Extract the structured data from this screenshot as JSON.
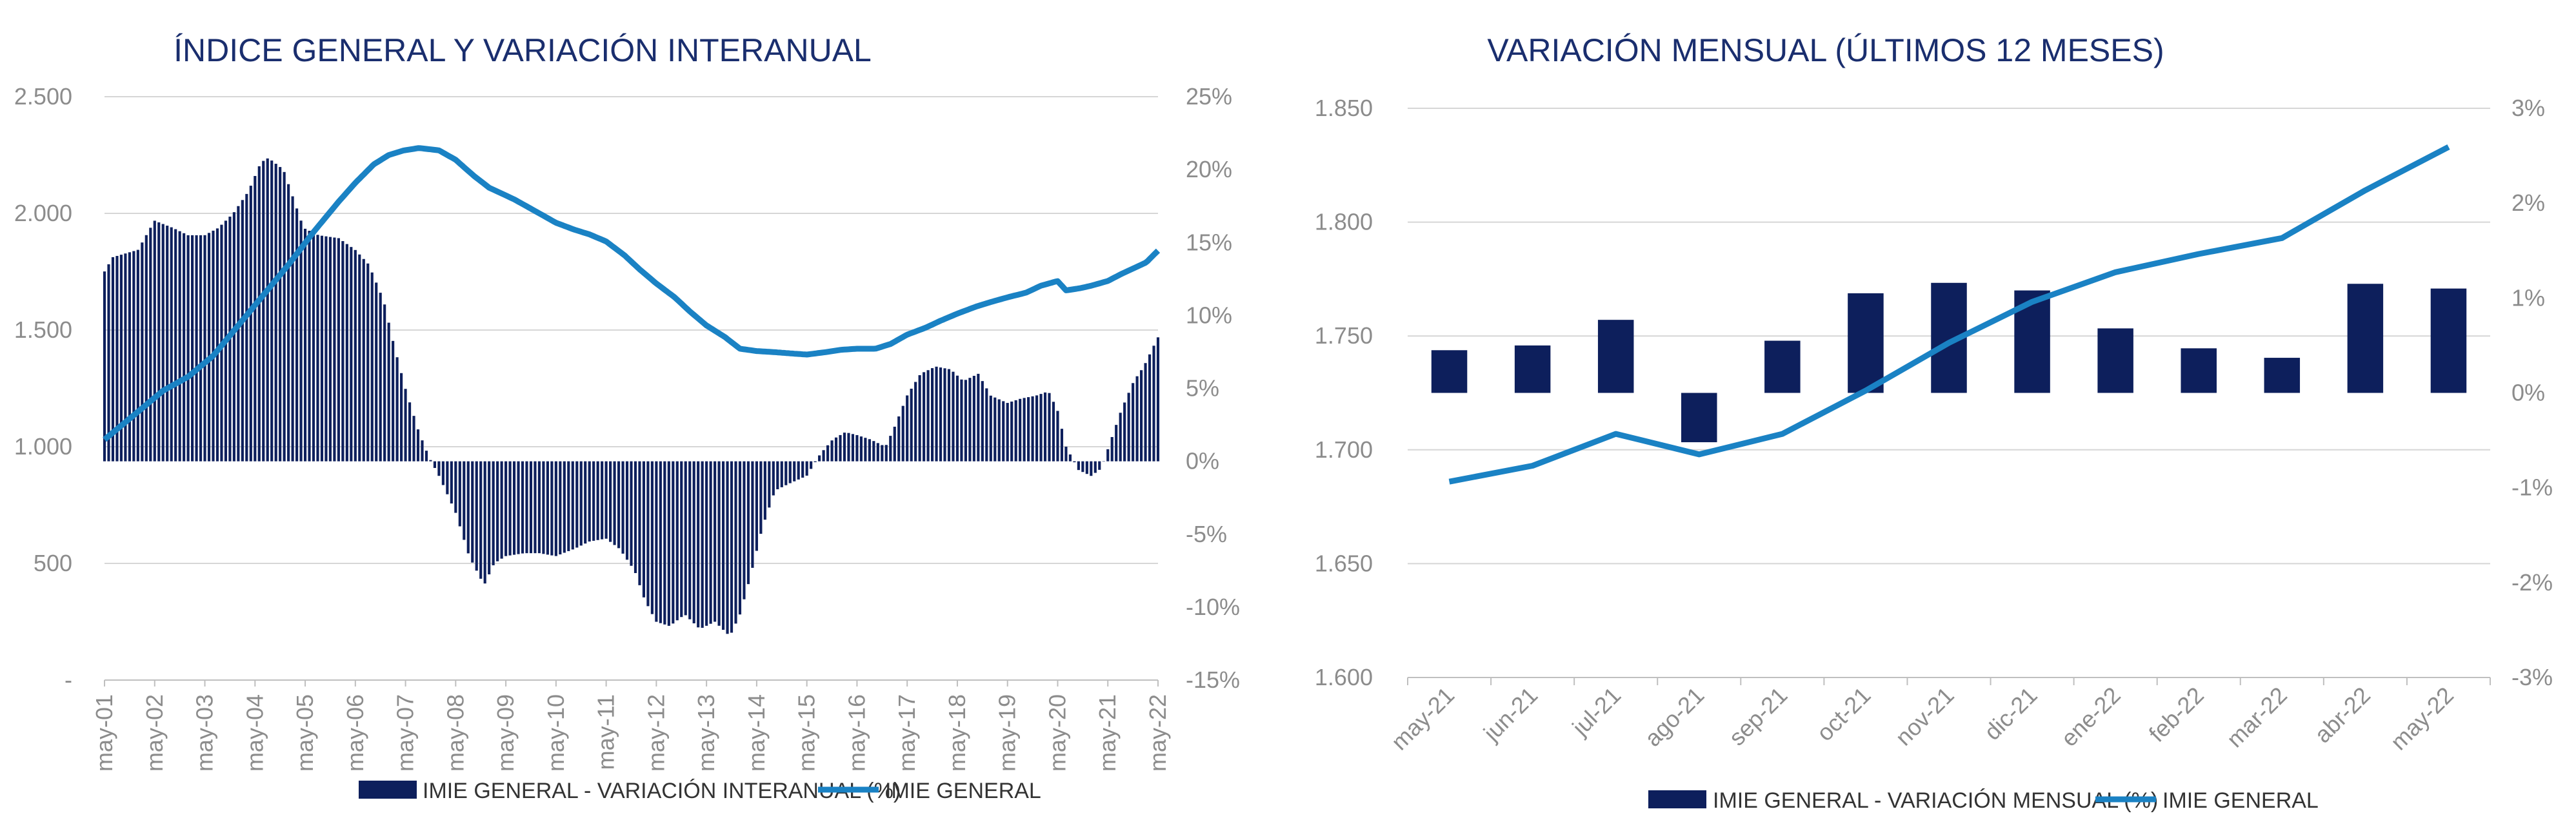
{
  "colors": {
    "bar": "#0d1f5c",
    "line": "#1a82c4",
    "grid": "#d6d6d6",
    "axis": "#bfbfbf",
    "title": "#1a2e6e",
    "tick": "#8c8c8c"
  },
  "chart_data": [
    {
      "type": "bar+line",
      "title": "ÍNDICE GENERAL Y VARIACIÓN INTERANUAL",
      "xlabel": "",
      "ylabel": "",
      "left_axis": {
        "ticks": [
          "-",
          "500",
          "1.000",
          "1.500",
          "2.000",
          "2.500"
        ],
        "range": [
          0,
          2500
        ]
      },
      "right_axis": {
        "ticks": [
          "-15%",
          "-10%",
          "-5%",
          "0%",
          "5%",
          "10%",
          "15%",
          "20%",
          "25%"
        ],
        "range": [
          -15,
          25
        ]
      },
      "x_tick_labels": [
        "may-01",
        "may-02",
        "may-03",
        "may-04",
        "may-05",
        "may-06",
        "may-07",
        "may-08",
        "may-09",
        "may-10",
        "may-11",
        "may-12",
        "may-13",
        "may-14",
        "may-15",
        "may-16",
        "may-17",
        "may-18",
        "may-19",
        "may-20",
        "may-21",
        "may-22"
      ],
      "x_start": 2001.333,
      "x_end": 2022.333,
      "legend": [
        "IMIE GENERAL - VARIACIÓN INTERANUAL (%)",
        "IMIE GENERAL"
      ],
      "legend_position": "bottom",
      "grid": true,
      "bar_keypoints": [
        {
          "t": 2001.33,
          "v": 13.0
        },
        {
          "t": 2001.5,
          "v": 14.0
        },
        {
          "t": 2002.0,
          "v": 14.5
        },
        {
          "t": 2002.33,
          "v": 16.5
        },
        {
          "t": 2002.7,
          "v": 16.0
        },
        {
          "t": 2003.0,
          "v": 15.5
        },
        {
          "t": 2003.33,
          "v": 15.5
        },
        {
          "t": 2003.6,
          "v": 16.0
        },
        {
          "t": 2003.9,
          "v": 17.0
        },
        {
          "t": 2004.2,
          "v": 18.5
        },
        {
          "t": 2004.45,
          "v": 20.5
        },
        {
          "t": 2004.6,
          "v": 20.8
        },
        {
          "t": 2004.9,
          "v": 20.0
        },
        {
          "t": 2005.1,
          "v": 18.0
        },
        {
          "t": 2005.3,
          "v": 16.0
        },
        {
          "t": 2005.6,
          "v": 15.5
        },
        {
          "t": 2006.0,
          "v": 15.3
        },
        {
          "t": 2006.33,
          "v": 14.5
        },
        {
          "t": 2006.6,
          "v": 13.5
        },
        {
          "t": 2006.9,
          "v": 11.0
        },
        {
          "t": 2007.1,
          "v": 8.0
        },
        {
          "t": 2007.33,
          "v": 5.0
        },
        {
          "t": 2007.6,
          "v": 2.0
        },
        {
          "t": 2007.8,
          "v": 0.3
        },
        {
          "t": 2008.0,
          "v": -1.0
        },
        {
          "t": 2008.33,
          "v": -3.5
        },
        {
          "t": 2008.6,
          "v": -6.5
        },
        {
          "t": 2008.9,
          "v": -8.5
        },
        {
          "t": 2009.1,
          "v": -7.0
        },
        {
          "t": 2009.33,
          "v": -6.5
        },
        {
          "t": 2009.7,
          "v": -6.3
        },
        {
          "t": 2010.0,
          "v": -6.3
        },
        {
          "t": 2010.33,
          "v": -6.5
        },
        {
          "t": 2010.7,
          "v": -6.0
        },
        {
          "t": 2011.0,
          "v": -5.5
        },
        {
          "t": 2011.33,
          "v": -5.3
        },
        {
          "t": 2011.6,
          "v": -6.0
        },
        {
          "t": 2011.9,
          "v": -7.5
        },
        {
          "t": 2012.1,
          "v": -9.5
        },
        {
          "t": 2012.33,
          "v": -11.0
        },
        {
          "t": 2012.6,
          "v": -11.3
        },
        {
          "t": 2012.9,
          "v": -10.5
        },
        {
          "t": 2013.2,
          "v": -11.5
        },
        {
          "t": 2013.5,
          "v": -11.0
        },
        {
          "t": 2013.8,
          "v": -12.0
        },
        {
          "t": 2014.0,
          "v": -10.5
        },
        {
          "t": 2014.2,
          "v": -8.0
        },
        {
          "t": 2014.45,
          "v": -4.5
        },
        {
          "t": 2014.7,
          "v": -2.0
        },
        {
          "t": 2015.0,
          "v": -1.5
        },
        {
          "t": 2015.33,
          "v": -1.0
        },
        {
          "t": 2015.6,
          "v": 0.5
        },
        {
          "t": 2015.85,
          "v": 1.5
        },
        {
          "t": 2016.1,
          "v": 2.0
        },
        {
          "t": 2016.33,
          "v": 1.8
        },
        {
          "t": 2016.6,
          "v": 1.5
        },
        {
          "t": 2016.9,
          "v": 1.0
        },
        {
          "t": 2017.1,
          "v": 2.5
        },
        {
          "t": 2017.33,
          "v": 4.5
        },
        {
          "t": 2017.6,
          "v": 6.0
        },
        {
          "t": 2017.9,
          "v": 6.5
        },
        {
          "t": 2018.2,
          "v": 6.3
        },
        {
          "t": 2018.45,
          "v": 5.5
        },
        {
          "t": 2018.75,
          "v": 6.0
        },
        {
          "t": 2019.0,
          "v": 4.5
        },
        {
          "t": 2019.33,
          "v": 4.0
        },
        {
          "t": 2019.6,
          "v": 4.3
        },
        {
          "t": 2019.9,
          "v": 4.5
        },
        {
          "t": 2020.15,
          "v": 4.8
        },
        {
          "t": 2020.33,
          "v": 3.5
        },
        {
          "t": 2020.5,
          "v": 1.0
        },
        {
          "t": 2020.75,
          "v": -0.6
        },
        {
          "t": 2021.0,
          "v": -1.0
        },
        {
          "t": 2021.2,
          "v": -0.5
        },
        {
          "t": 2021.4,
          "v": 1.5
        },
        {
          "t": 2021.6,
          "v": 3.5
        },
        {
          "t": 2021.85,
          "v": 5.5
        },
        {
          "t": 2022.05,
          "v": 6.5
        },
        {
          "t": 2022.33,
          "v": 8.5
        }
      ],
      "line_keypoints": [
        {
          "t": 2001.33,
          "v": 1030
        },
        {
          "t": 2002.0,
          "v": 1150
        },
        {
          "t": 2002.5,
          "v": 1240
        },
        {
          "t": 2003.0,
          "v": 1300
        },
        {
          "t": 2003.5,
          "v": 1390
        },
        {
          "t": 2004.0,
          "v": 1520
        },
        {
          "t": 2004.5,
          "v": 1650
        },
        {
          "t": 2005.0,
          "v": 1780
        },
        {
          "t": 2005.5,
          "v": 1920
        },
        {
          "t": 2006.0,
          "v": 2050
        },
        {
          "t": 2006.33,
          "v": 2130
        },
        {
          "t": 2006.7,
          "v": 2210
        },
        {
          "t": 2007.0,
          "v": 2250
        },
        {
          "t": 2007.3,
          "v": 2270
        },
        {
          "t": 2007.6,
          "v": 2280
        },
        {
          "t": 2008.0,
          "v": 2270
        },
        {
          "t": 2008.33,
          "v": 2230
        },
        {
          "t": 2008.7,
          "v": 2160
        },
        {
          "t": 2009.0,
          "v": 2110
        },
        {
          "t": 2009.5,
          "v": 2060
        },
        {
          "t": 2010.0,
          "v": 2000
        },
        {
          "t": 2010.33,
          "v": 1960
        },
        {
          "t": 2010.7,
          "v": 1930
        },
        {
          "t": 2011.0,
          "v": 1910
        },
        {
          "t": 2011.33,
          "v": 1880
        },
        {
          "t": 2011.7,
          "v": 1820
        },
        {
          "t": 2012.0,
          "v": 1760
        },
        {
          "t": 2012.33,
          "v": 1700
        },
        {
          "t": 2012.7,
          "v": 1640
        },
        {
          "t": 2013.0,
          "v": 1580
        },
        {
          "t": 2013.33,
          "v": 1520
        },
        {
          "t": 2013.7,
          "v": 1470
        },
        {
          "t": 2014.0,
          "v": 1420
        },
        {
          "t": 2014.33,
          "v": 1410
        },
        {
          "t": 2014.7,
          "v": 1405
        },
        {
          "t": 2015.0,
          "v": 1400
        },
        {
          "t": 2015.33,
          "v": 1395
        },
        {
          "t": 2015.7,
          "v": 1405
        },
        {
          "t": 2016.0,
          "v": 1415
        },
        {
          "t": 2016.33,
          "v": 1420
        },
        {
          "t": 2016.7,
          "v": 1420
        },
        {
          "t": 2017.0,
          "v": 1440
        },
        {
          "t": 2017.33,
          "v": 1480
        },
        {
          "t": 2017.7,
          "v": 1510
        },
        {
          "t": 2018.0,
          "v": 1540
        },
        {
          "t": 2018.33,
          "v": 1570
        },
        {
          "t": 2018.7,
          "v": 1600
        },
        {
          "t": 2019.0,
          "v": 1620
        },
        {
          "t": 2019.33,
          "v": 1640
        },
        {
          "t": 2019.7,
          "v": 1660
        },
        {
          "t": 2020.0,
          "v": 1690
        },
        {
          "t": 2020.33,
          "v": 1710
        },
        {
          "t": 2020.5,
          "v": 1670
        },
        {
          "t": 2020.8,
          "v": 1680
        },
        {
          "t": 2021.0,
          "v": 1690
        },
        {
          "t": 2021.33,
          "v": 1710
        },
        {
          "t": 2021.6,
          "v": 1740
        },
        {
          "t": 2021.9,
          "v": 1770
        },
        {
          "t": 2022.1,
          "v": 1790
        },
        {
          "t": 2022.33,
          "v": 1840
        }
      ]
    },
    {
      "type": "bar+line",
      "title": "VARIACIÓN MENSUAL (ÚLTIMOS 12 MESES)",
      "xlabel": "",
      "ylabel": "",
      "categories": [
        "may-21",
        "jun-21",
        "jul-21",
        "ago-21",
        "sep-21",
        "oct-21",
        "nov-21",
        "dic-21",
        "ene-22",
        "feb-22",
        "mar-22",
        "abr-22",
        "may-22"
      ],
      "left_axis": {
        "ticks": [
          "1.600",
          "1.650",
          "1.700",
          "1.750",
          "1.800",
          "1.850"
        ],
        "range": [
          1600,
          1850
        ]
      },
      "right_axis": {
        "ticks": [
          "-3%",
          "-2%",
          "-1%",
          "0%",
          "1%",
          "2%",
          "3%"
        ],
        "range": [
          -3,
          3
        ]
      },
      "legend": [
        "IMIE GENERAL - VARIACIÓN MENSUAL (%)",
        "IMIE GENERAL"
      ],
      "legend_position": "bottom",
      "grid": true,
      "series": [
        {
          "name": "IMIE GENERAL - VARIACIÓN MENSUAL (%)",
          "axis": "right",
          "kind": "bar",
          "values": [
            0.45,
            0.5,
            0.77,
            -0.52,
            0.55,
            1.05,
            1.16,
            1.08,
            0.68,
            0.47,
            0.37,
            1.15,
            1.1
          ]
        },
        {
          "name": "IMIE GENERAL",
          "axis": "left",
          "kind": "line",
          "values": [
            1686,
            1693,
            1707,
            1698,
            1707,
            1726,
            1747,
            1765,
            1778,
            1786,
            1793,
            1814,
            1833
          ]
        }
      ]
    }
  ]
}
